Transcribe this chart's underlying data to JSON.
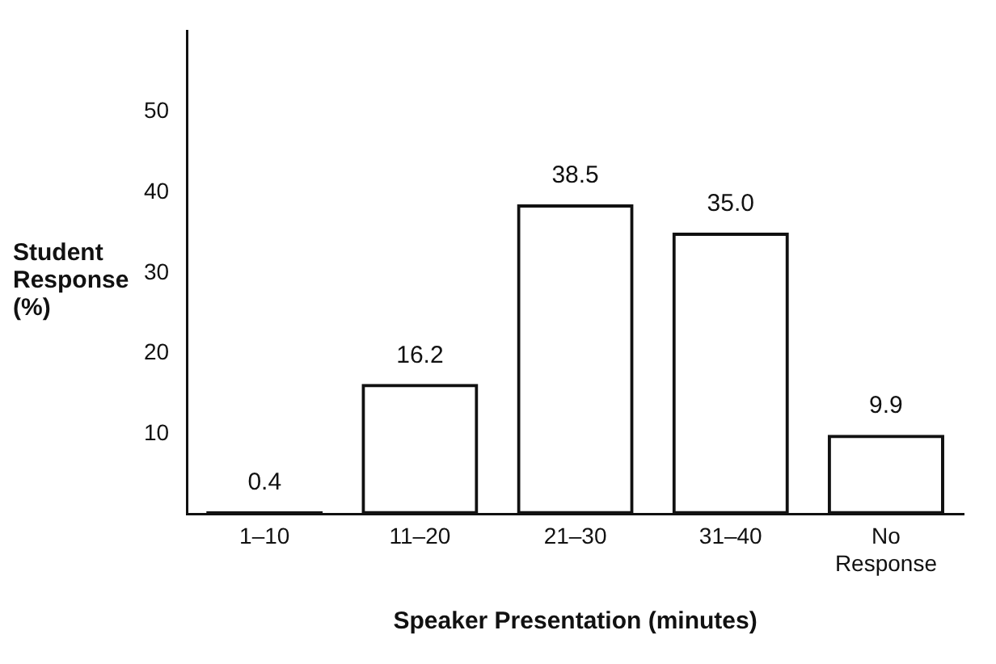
{
  "chart_data": {
    "type": "bar",
    "xlabel": "Speaker Presentation (minutes)",
    "ylabel": "Student Response (%)",
    "categories": [
      "1–10",
      "11–20",
      "21–30",
      "31–40",
      "No Response"
    ],
    "values": [
      0.4,
      16.2,
      38.5,
      35.0,
      9.9
    ],
    "value_labels": [
      "0.4",
      "16.2",
      "38.5",
      "35.0",
      "9.9"
    ],
    "color": "#111111",
    "ylim": [
      0,
      60
    ],
    "yticks": [
      10,
      20,
      30,
      40,
      50
    ],
    "grid": false,
    "legend": false
  }
}
